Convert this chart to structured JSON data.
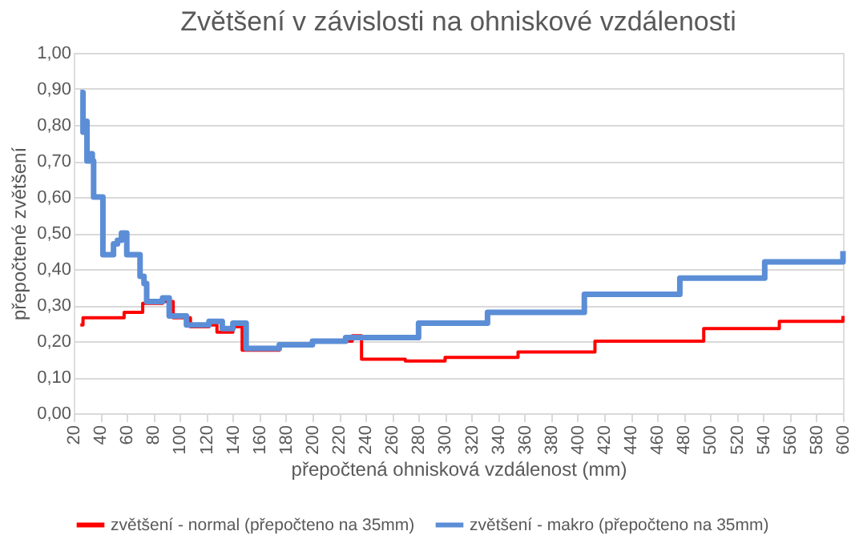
{
  "chart_data": {
    "type": "step",
    "title": "Zvětšení v závislosti na ohniskové vzdálenosti",
    "xlabel": "přepočtená ohnisková vzdálenost (mm)",
    "ylabel": "přepočtené zvětšení",
    "xlim": [
      20,
      600
    ],
    "xticks": [
      20,
      40,
      60,
      80,
      100,
      120,
      140,
      160,
      180,
      200,
      220,
      240,
      260,
      280,
      300,
      320,
      340,
      360,
      380,
      400,
      420,
      440,
      460,
      480,
      500,
      520,
      540,
      560,
      580,
      600
    ],
    "ylim": [
      0,
      1
    ],
    "yticks": [
      {
        "value": 0,
        "label": "0,00"
      },
      {
        "value": 0.1,
        "label": "0,10"
      },
      {
        "value": 0.2,
        "label": "0,20"
      },
      {
        "value": 0.3,
        "label": "0,30"
      },
      {
        "value": 0.4,
        "label": "0,40"
      },
      {
        "value": 0.5,
        "label": "0,50"
      },
      {
        "value": 0.6,
        "label": "0,60"
      },
      {
        "value": 0.7,
        "label": "0,70"
      },
      {
        "value": 0.8,
        "label": "0,80"
      },
      {
        "value": 0.9,
        "label": "0,90"
      },
      {
        "value": 1,
        "label": "1,00"
      }
    ],
    "grid": "y",
    "legend": "bottom",
    "line_style": "solid",
    "marker": "none",
    "series": [
      {
        "name": "zvětšení - normal (přepočteno na 35mm)",
        "color": "#ff0000",
        "x": [
          25,
          27,
          58,
          72,
          87,
          95,
          108,
          122,
          128,
          140,
          147,
          175,
          200,
          230,
          237,
          270,
          300,
          355,
          413,
          495,
          552,
          600
        ],
        "values": [
          0.245,
          0.265,
          0.28,
          0.305,
          0.31,
          0.265,
          0.24,
          0.245,
          0.225,
          0.24,
          0.175,
          0.19,
          0.2,
          0.215,
          0.15,
          0.145,
          0.155,
          0.17,
          0.2,
          0.235,
          0.255,
          0.27
        ]
      },
      {
        "name": "zvětšení - makro (přepočteno na 35mm)",
        "color": "#5b8ed6",
        "x": [
          25,
          27,
          28,
          30,
          32,
          34,
          35,
          42,
          50,
          53,
          56,
          60,
          70,
          73,
          75,
          87,
          92,
          105,
          122,
          132,
          140,
          150,
          175,
          200,
          225,
          280,
          332,
          405,
          477,
          541,
          600
        ],
        "values": [
          0.89,
          0.78,
          0.81,
          0.7,
          0.72,
          0.7,
          0.6,
          0.44,
          0.47,
          0.48,
          0.5,
          0.44,
          0.38,
          0.36,
          0.31,
          0.32,
          0.27,
          0.245,
          0.255,
          0.235,
          0.25,
          0.18,
          0.19,
          0.2,
          0.21,
          0.25,
          0.28,
          0.33,
          0.375,
          0.42,
          0.45
        ]
      }
    ]
  }
}
